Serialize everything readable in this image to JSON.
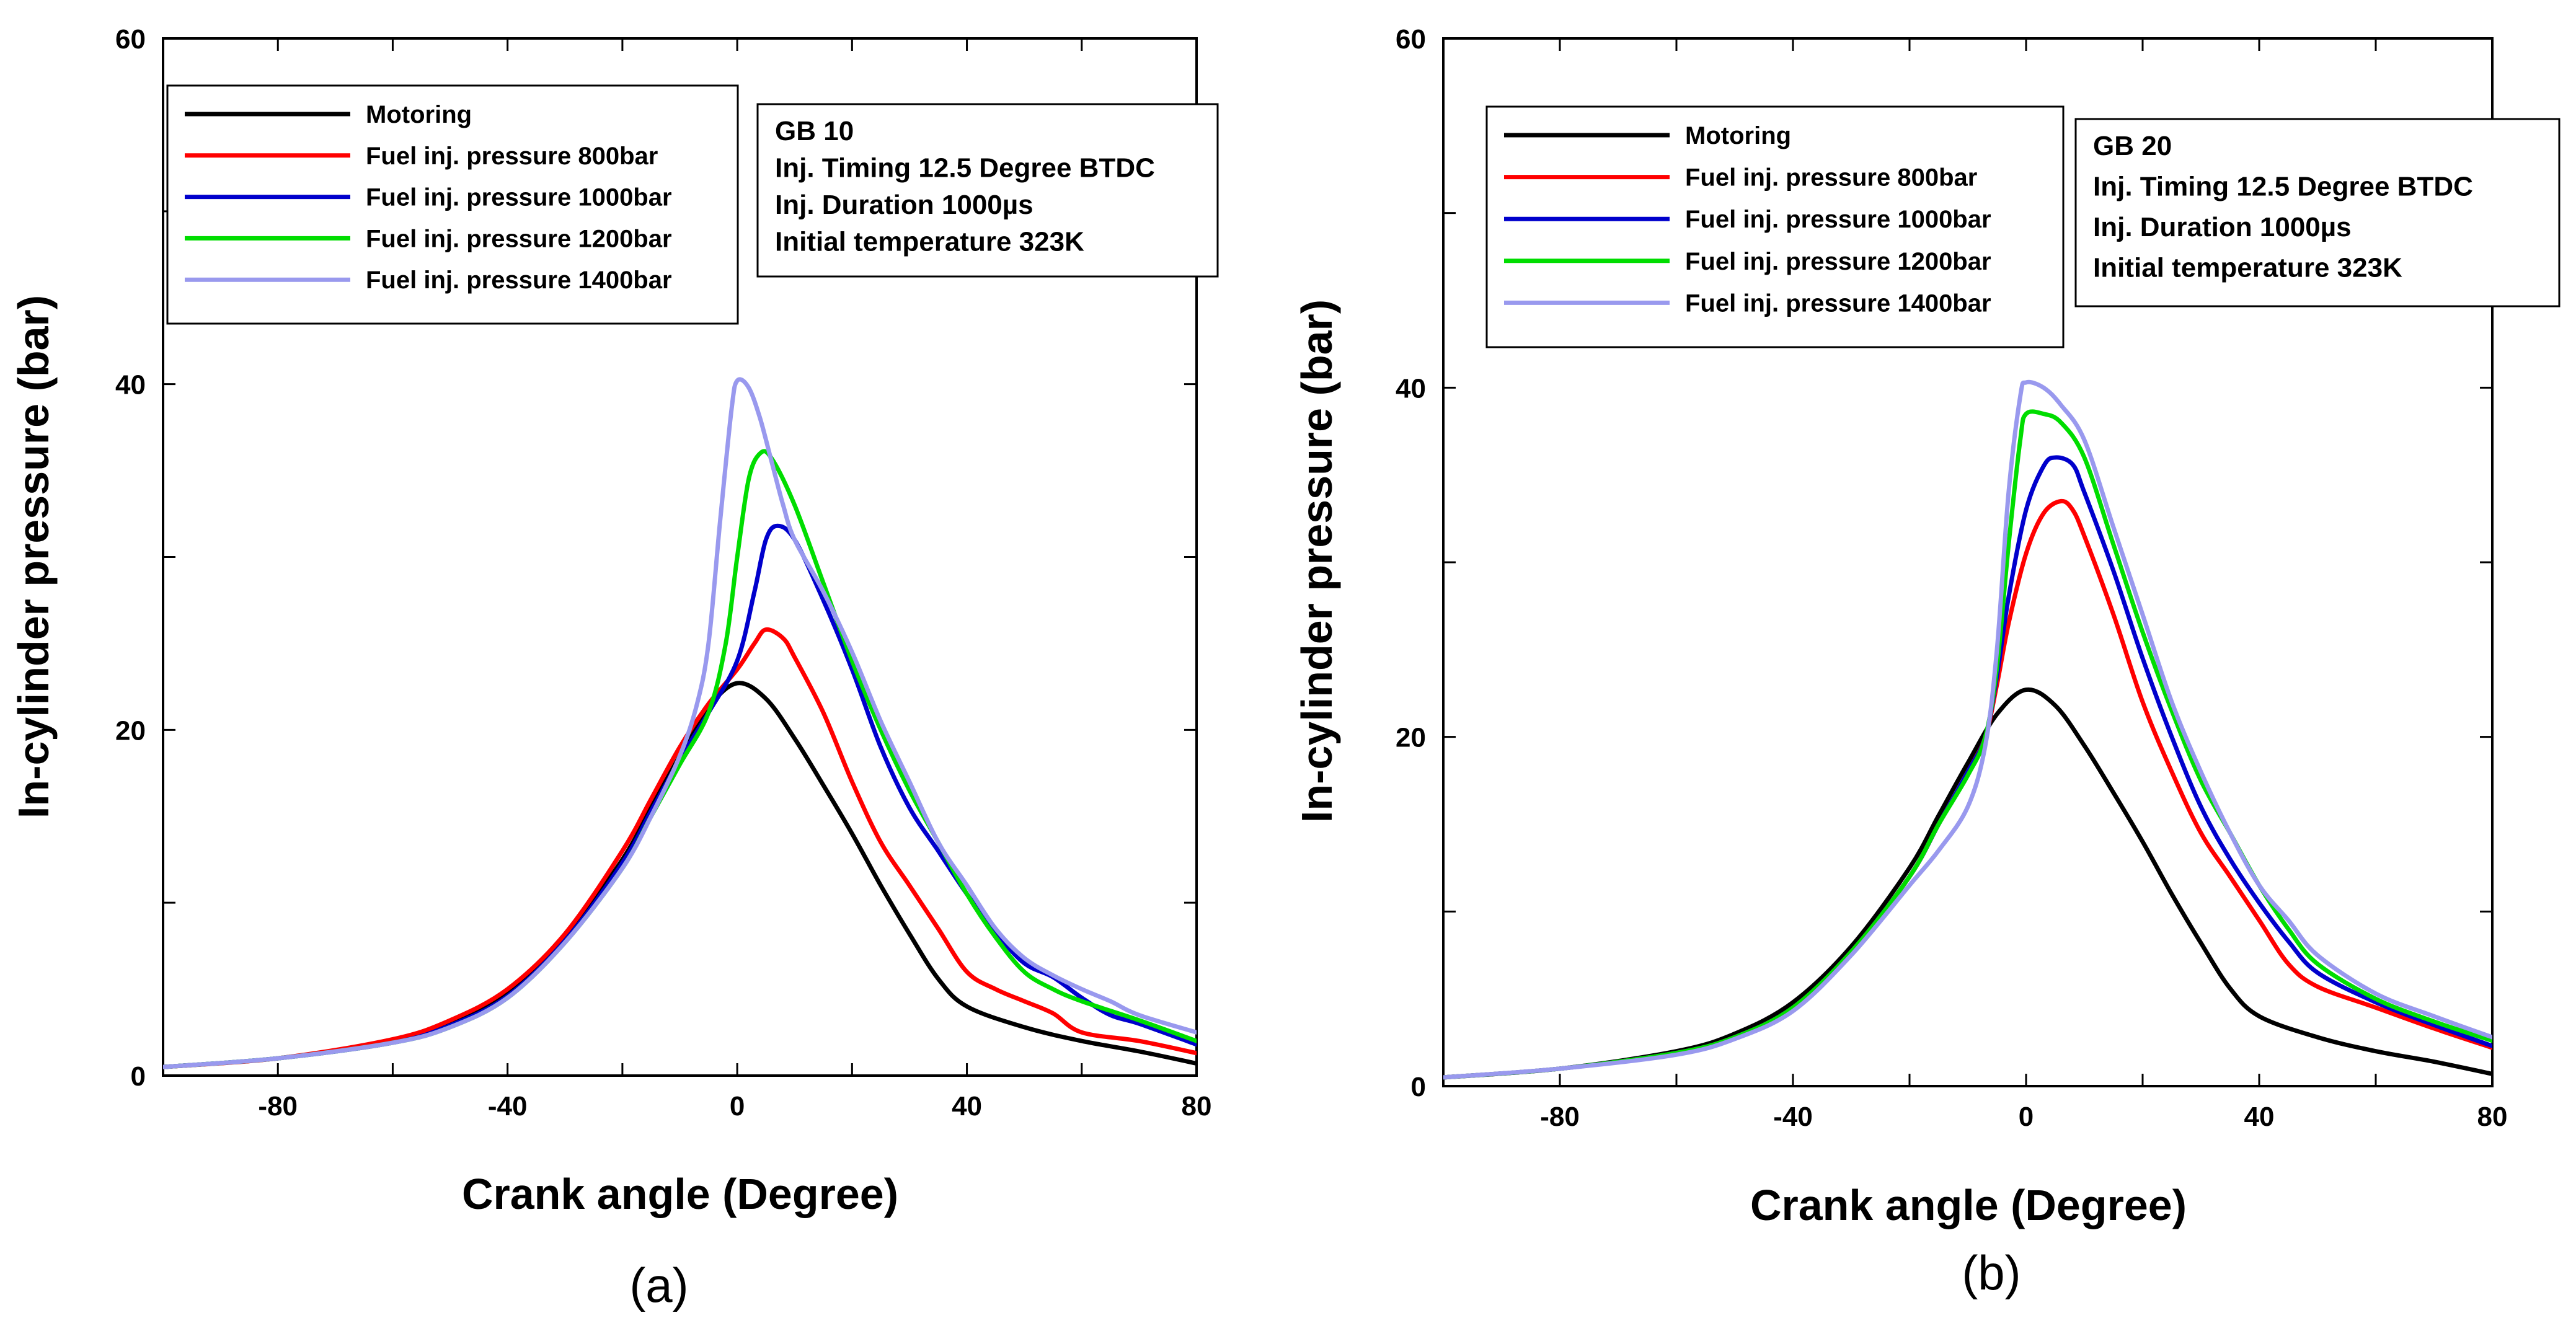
{
  "chart_data": [
    {
      "panel": "(a)",
      "type": "line",
      "xlabel": "Crank angle (Degree)",
      "ylabel": "In-cylinder pressure (bar)",
      "xlim": [
        -100,
        80
      ],
      "ylim": [
        0,
        60
      ],
      "xticks": [
        -80,
        -40,
        0,
        40,
        80
      ],
      "yticks": [
        0,
        20,
        40,
        60
      ],
      "info": [
        "GB 10",
        "Inj. Timing 12.5 Degree BTDC",
        "Inj. Duration 1000µs",
        "Initial temperature 323K"
      ],
      "legend_position": "top-left",
      "series": [
        {
          "name": "Motoring",
          "color": "#000000",
          "x": [
            -100,
            -80,
            -60,
            -50,
            -40,
            -30,
            -20,
            -15,
            -10,
            -5,
            0,
            5,
            10,
            15,
            20,
            25,
            30,
            35,
            40,
            50,
            60,
            70,
            80
          ],
          "y": [
            0.5,
            1.0,
            2.0,
            3.0,
            4.8,
            8.0,
            12.5,
            15.5,
            18.5,
            21.3,
            22.7,
            21.8,
            19.5,
            16.8,
            14.0,
            11.0,
            8.2,
            5.6,
            4.0,
            2.8,
            2.0,
            1.4,
            0.7
          ]
        },
        {
          "name": "Fuel inj. pressure 800bar",
          "color": "#ff0000",
          "x": [
            -100,
            -80,
            -60,
            -50,
            -40,
            -30,
            -20,
            -15,
            -10,
            -5,
            0,
            3,
            5,
            8,
            10,
            15,
            20,
            25,
            30,
            35,
            40,
            45,
            50,
            55,
            60,
            70,
            80
          ],
          "y": [
            0.5,
            1.0,
            2.1,
            3.2,
            5.0,
            8.2,
            13.0,
            16.0,
            19.0,
            21.5,
            23.5,
            25.0,
            25.8,
            25.3,
            24.2,
            21.0,
            17.0,
            13.5,
            11.0,
            8.5,
            6.0,
            5.0,
            4.3,
            3.6,
            2.5,
            2.0,
            1.3
          ]
        },
        {
          "name": "Fuel inj. pressure 1000bar",
          "color": "#0000cc",
          "x": [
            -100,
            -80,
            -60,
            -50,
            -40,
            -30,
            -20,
            -15,
            -10,
            -5,
            0,
            3,
            5,
            7,
            10,
            15,
            20,
            25,
            30,
            35,
            40,
            45,
            50,
            55,
            60,
            65,
            70,
            80
          ],
          "y": [
            0.5,
            1.0,
            1.9,
            2.9,
            4.6,
            7.8,
            12.3,
            15.3,
            18.3,
            21.0,
            24.0,
            28.0,
            31.0,
            31.8,
            31.0,
            27.5,
            23.5,
            19.0,
            15.5,
            13.0,
            10.5,
            8.3,
            6.5,
            5.7,
            4.5,
            3.5,
            3.0,
            1.8
          ]
        },
        {
          "name": "Fuel inj. pressure 1200bar",
          "color": "#00dd00",
          "x": [
            -100,
            -80,
            -60,
            -50,
            -40,
            -30,
            -20,
            -15,
            -10,
            -5,
            -2,
            0,
            2,
            4,
            6,
            10,
            15,
            20,
            25,
            30,
            35,
            40,
            45,
            50,
            55,
            60,
            70,
            80
          ],
          "y": [
            0.5,
            1.0,
            1.9,
            2.8,
            4.5,
            7.7,
            12.0,
            15.0,
            18.0,
            21.0,
            25.0,
            30.0,
            34.5,
            36.0,
            35.7,
            33.0,
            28.5,
            24.0,
            20.0,
            16.5,
            13.5,
            10.5,
            8.0,
            6.0,
            5.0,
            4.3,
            3.2,
            2.0
          ]
        },
        {
          "name": "Fuel inj. pressure 1400bar",
          "color": "#9999ee",
          "x": [
            -100,
            -80,
            -60,
            -50,
            -40,
            -30,
            -20,
            -15,
            -10,
            -7,
            -5,
            -3,
            -1,
            0,
            2,
            4,
            6,
            8,
            10,
            15,
            20,
            25,
            30,
            35,
            40,
            45,
            50,
            55,
            60,
            65,
            70,
            80
          ],
          "y": [
            0.5,
            1.0,
            1.9,
            2.8,
            4.5,
            7.7,
            12.0,
            15.0,
            18.5,
            21.5,
            25.0,
            32.0,
            38.5,
            40.2,
            39.8,
            38.0,
            35.5,
            33.0,
            31.0,
            28.0,
            24.5,
            20.5,
            17.0,
            13.5,
            11.0,
            8.5,
            6.8,
            5.8,
            5.0,
            4.3,
            3.5,
            2.5
          ]
        }
      ]
    },
    {
      "panel": "(b)",
      "type": "line",
      "xlabel": "Crank angle (Degree)",
      "ylabel": "In-cylinder pressure (bar)",
      "xlim": [
        -100,
        80
      ],
      "ylim": [
        0,
        60
      ],
      "xticks": [
        -80,
        -40,
        0,
        40,
        80
      ],
      "yticks": [
        0,
        20,
        40,
        60
      ],
      "info": [
        "GB 20",
        "Inj. Timing 12.5 Degree BTDC",
        "Inj. Duration 1000µs",
        "Initial temperature 323K"
      ],
      "legend_position": "top-left",
      "series": [
        {
          "name": "Motoring",
          "color": "#000000",
          "x": [
            -100,
            -80,
            -60,
            -50,
            -40,
            -30,
            -20,
            -15,
            -10,
            -5,
            0,
            5,
            10,
            15,
            20,
            25,
            30,
            35,
            40,
            50,
            60,
            70,
            80
          ],
          "y": [
            0.5,
            1.0,
            2.0,
            3.0,
            4.8,
            8.0,
            12.5,
            15.5,
            18.5,
            21.3,
            22.7,
            21.8,
            19.5,
            16.8,
            14.0,
            11.0,
            8.2,
            5.6,
            4.0,
            2.8,
            2.0,
            1.4,
            0.7
          ]
        },
        {
          "name": "Fuel inj. pressure 800bar",
          "color": "#ff0000",
          "x": [
            -100,
            -80,
            -60,
            -50,
            -40,
            -30,
            -20,
            -15,
            -10,
            -7,
            -5,
            -3,
            0,
            3,
            6,
            8,
            10,
            15,
            20,
            25,
            30,
            35,
            40,
            45,
            50,
            60,
            70,
            80
          ],
          "y": [
            0.5,
            1.0,
            1.9,
            2.8,
            4.5,
            7.7,
            12.0,
            15.0,
            18.0,
            20.0,
            23.0,
            26.5,
            30.5,
            32.8,
            33.5,
            33.0,
            31.5,
            27.0,
            22.0,
            18.0,
            14.5,
            12.0,
            9.5,
            7.0,
            5.7,
            4.5,
            3.3,
            2.2
          ]
        },
        {
          "name": "Fuel inj. pressure 1000bar",
          "color": "#0000cc",
          "x": [
            -100,
            -80,
            -60,
            -50,
            -40,
            -30,
            -20,
            -15,
            -10,
            -7,
            -5,
            -3,
            0,
            3,
            5,
            8,
            10,
            15,
            20,
            25,
            30,
            35,
            40,
            45,
            50,
            60,
            70,
            80
          ],
          "y": [
            0.5,
            1.0,
            1.9,
            2.8,
            4.5,
            7.7,
            12.0,
            15.0,
            18.0,
            20.0,
            23.5,
            28.0,
            33.0,
            35.5,
            36.0,
            35.6,
            34.0,
            29.5,
            24.5,
            20.0,
            16.0,
            13.0,
            10.5,
            8.3,
            6.5,
            4.8,
            3.5,
            2.3
          ]
        },
        {
          "name": "Fuel inj. pressure 1200bar",
          "color": "#00dd00",
          "x": [
            -100,
            -80,
            -60,
            -50,
            -40,
            -30,
            -20,
            -15,
            -10,
            -7,
            -5,
            -3,
            -1,
            0,
            3,
            6,
            10,
            15,
            20,
            25,
            30,
            35,
            40,
            45,
            50,
            60,
            70,
            80
          ],
          "y": [
            0.5,
            1.0,
            1.9,
            2.8,
            4.5,
            7.7,
            12.0,
            15.0,
            17.8,
            20.0,
            24.0,
            31.0,
            37.0,
            38.5,
            38.5,
            38.0,
            36.0,
            31.0,
            26.0,
            21.5,
            17.5,
            14.5,
            11.5,
            9.0,
            7.0,
            5.0,
            3.7,
            2.6
          ]
        },
        {
          "name": "Fuel inj. pressure 1400bar",
          "color": "#9999ee",
          "x": [
            -100,
            -80,
            -60,
            -50,
            -40,
            -30,
            -20,
            -15,
            -10,
            -7,
            -5,
            -3,
            -1,
            0,
            3,
            6,
            10,
            15,
            20,
            25,
            30,
            35,
            40,
            45,
            50,
            60,
            70,
            80
          ],
          "y": [
            0.5,
            1.0,
            1.8,
            2.7,
            4.3,
            7.5,
            11.5,
            13.5,
            16.0,
            19.5,
            25.0,
            34.0,
            39.5,
            40.3,
            40.0,
            39.0,
            37.0,
            32.0,
            27.0,
            22.0,
            18.0,
            14.5,
            11.5,
            9.5,
            7.5,
            5.3,
            4.0,
            2.8
          ]
        }
      ]
    }
  ]
}
